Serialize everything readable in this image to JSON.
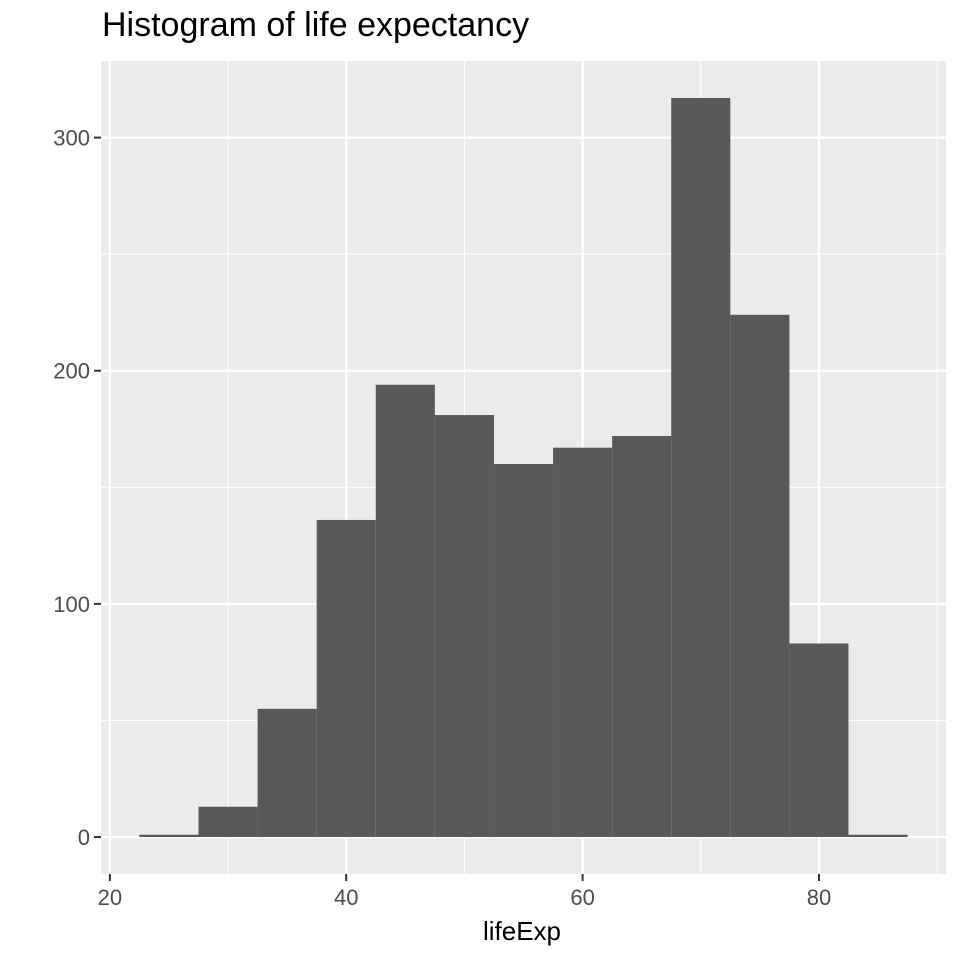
{
  "chart_data": {
    "type": "bar",
    "title": "Histogram of life expectancy",
    "xlabel": "lifeExp",
    "ylabel": "",
    "bin_width": 5,
    "bins": [
      {
        "x_start": 22.5,
        "x_end": 27.5,
        "count": 1
      },
      {
        "x_start": 27.5,
        "x_end": 32.5,
        "count": 13
      },
      {
        "x_start": 32.5,
        "x_end": 37.5,
        "count": 55
      },
      {
        "x_start": 37.5,
        "x_end": 42.5,
        "count": 136
      },
      {
        "x_start": 42.5,
        "x_end": 47.5,
        "count": 194
      },
      {
        "x_start": 47.5,
        "x_end": 52.5,
        "count": 181
      },
      {
        "x_start": 52.5,
        "x_end": 57.5,
        "count": 160
      },
      {
        "x_start": 57.5,
        "x_end": 62.5,
        "count": 167
      },
      {
        "x_start": 62.5,
        "x_end": 67.5,
        "count": 172
      },
      {
        "x_start": 67.5,
        "x_end": 72.5,
        "count": 317
      },
      {
        "x_start": 72.5,
        "x_end": 77.5,
        "count": 224
      },
      {
        "x_start": 77.5,
        "x_end": 82.5,
        "count": 83
      },
      {
        "x_start": 82.5,
        "x_end": 87.5,
        "count": 1
      }
    ],
    "xlim": [
      19.25,
      90.75
    ],
    "ylim": [
      -15.85,
      332.85
    ],
    "x_ticks": [
      20,
      40,
      60,
      80
    ],
    "x_tick_labels": [
      "20",
      "40",
      "60",
      "80"
    ],
    "y_ticks": [
      0,
      100,
      200,
      300
    ],
    "y_tick_labels": [
      "0",
      "100",
      "200",
      "300"
    ],
    "x_minor_ticks": [
      30,
      50,
      70,
      90
    ],
    "y_minor_ticks": [
      50,
      150,
      250
    ],
    "grid": true,
    "colors": {
      "panel_background": "#EBEBEB",
      "grid": "#FFFFFF",
      "bar_fill": "#595959",
      "axis_text": "#4D4D4D",
      "tick": "#333333"
    }
  }
}
